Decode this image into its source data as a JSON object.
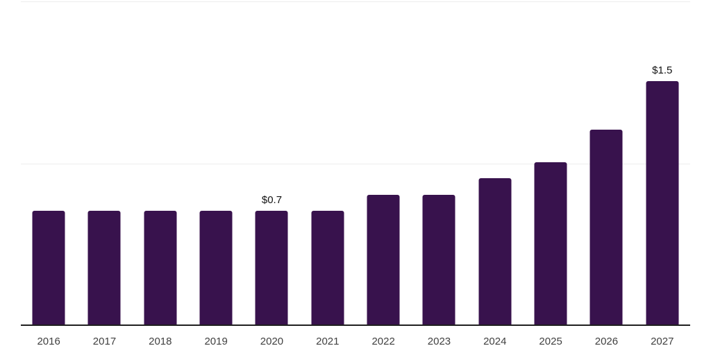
{
  "chart_data": {
    "type": "bar",
    "categories": [
      "2016",
      "2017",
      "2018",
      "2019",
      "2020",
      "2021",
      "2022",
      "2023",
      "2024",
      "2025",
      "2026",
      "2027"
    ],
    "values": [
      0.7,
      0.7,
      0.7,
      0.7,
      0.7,
      0.7,
      0.8,
      0.8,
      0.9,
      1.0,
      1.2,
      1.5
    ],
    "data_labels": {
      "2020": "$0.7",
      "2027": "$1.5"
    },
    "title": "",
    "xlabel": "",
    "ylabel": "",
    "ylim": [
      0,
      2
    ],
    "gridlines_y": [
      0,
      1,
      2
    ],
    "grid": "horizontal",
    "legend": "none",
    "colors": {
      "bar": "#38124d",
      "gridline": "#ededed",
      "axis_line": "#1f1f1f",
      "tick_label": "#404040",
      "data_label": "#121212"
    }
  }
}
